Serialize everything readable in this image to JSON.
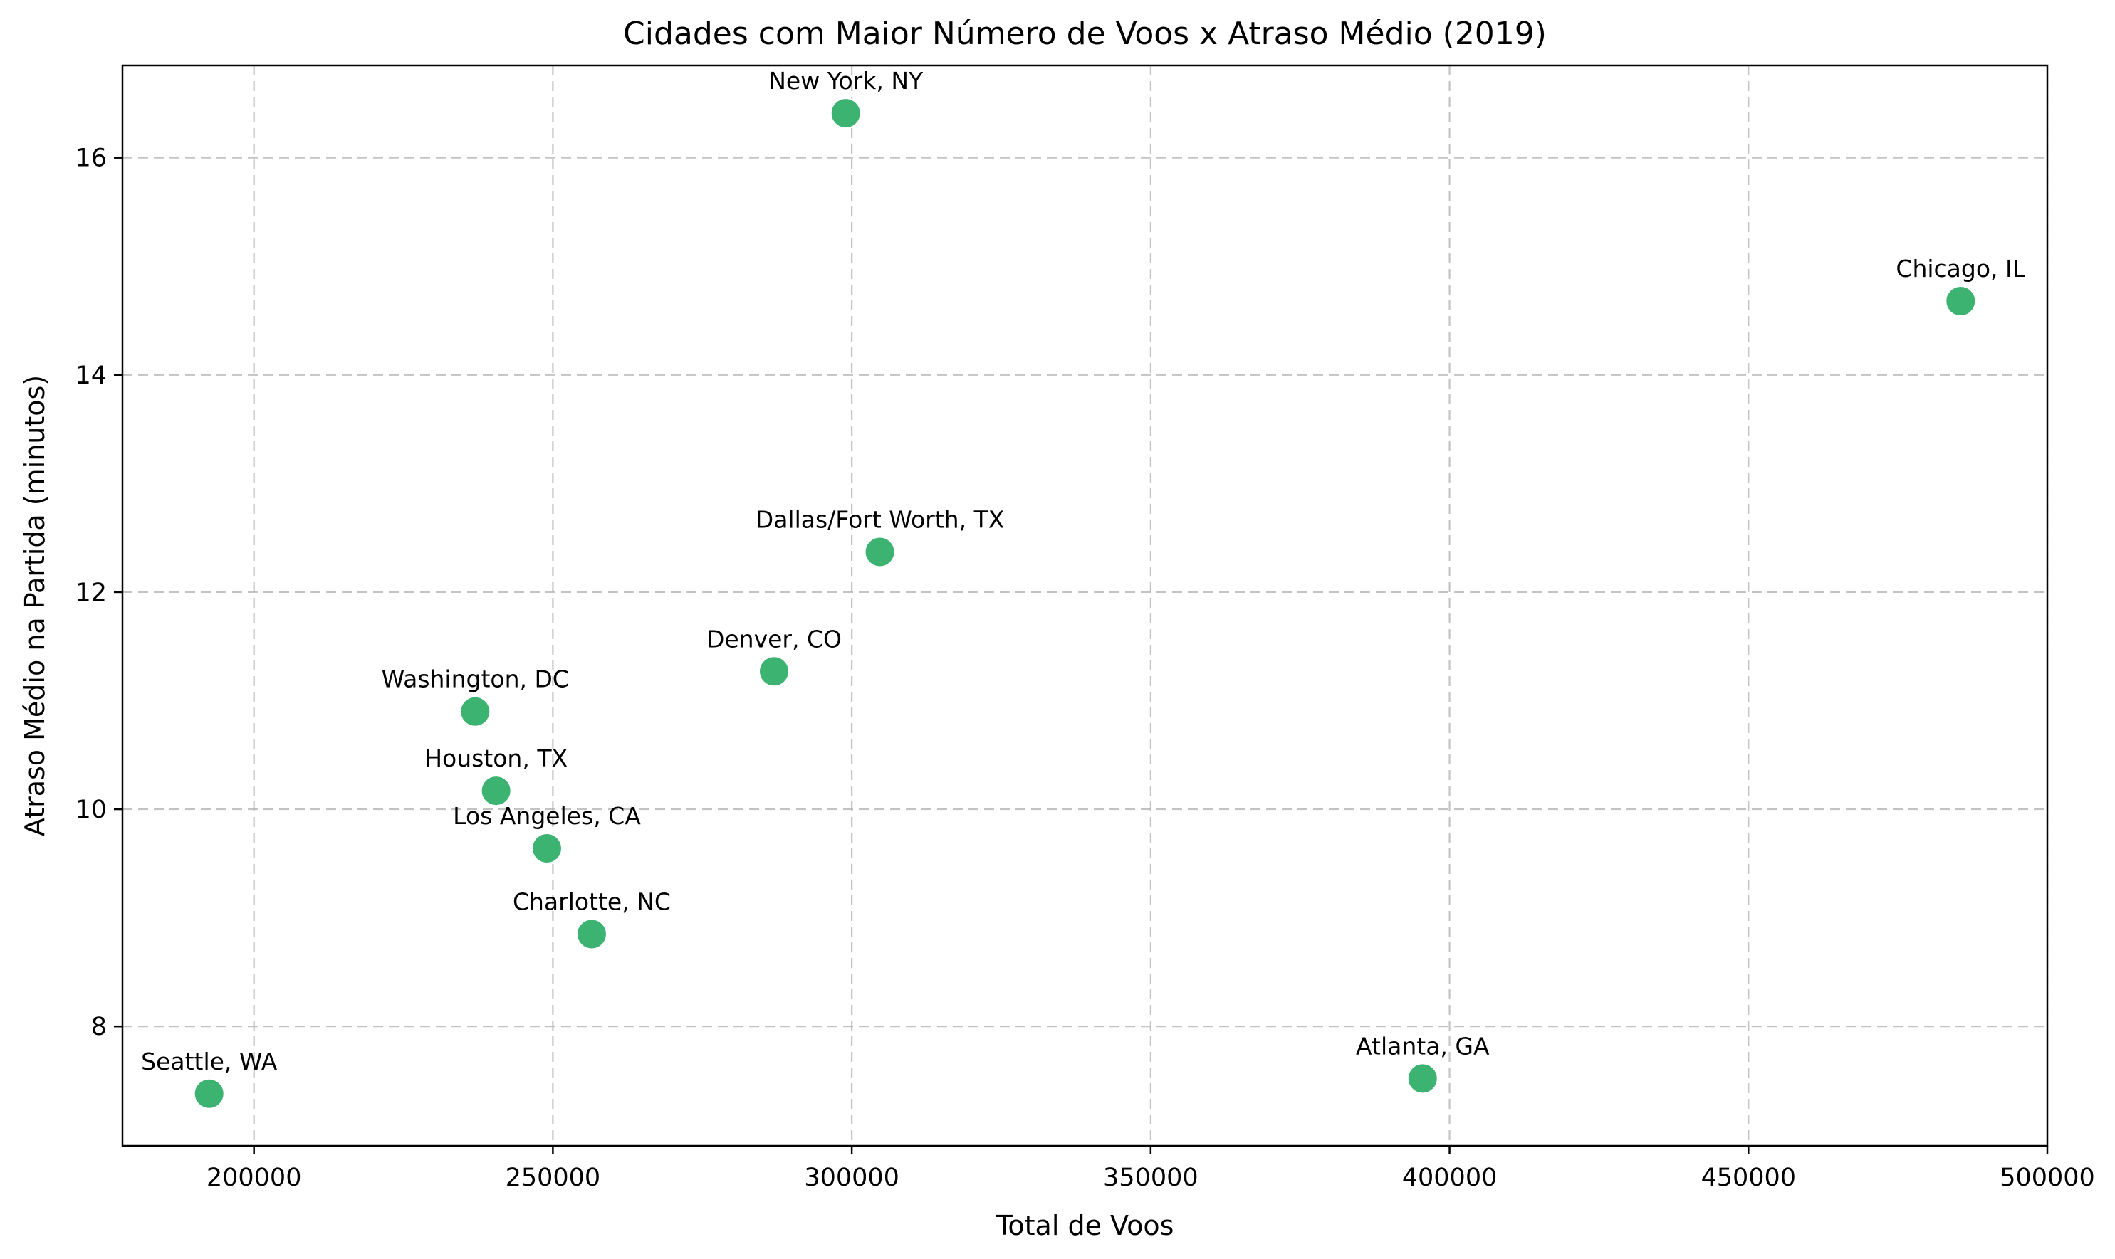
{
  "chart_data": {
    "type": "scatter",
    "title": "Cidades com Maior Número de Voos x Atraso Médio (2019)",
    "xlabel": "Total de Voos",
    "ylabel": "Atraso Médio na Partida (minutos)",
    "xlim": [
      178000,
      500000
    ],
    "ylim": [
      6.9,
      16.85
    ],
    "xticks": [
      200000,
      250000,
      300000,
      350000,
      400000,
      450000,
      500000
    ],
    "yticks": [
      8,
      10,
      12,
      14,
      16
    ],
    "grid": true,
    "marker_color": "#3cb371",
    "points": [
      {
        "label": "New York, NY",
        "x": 299000,
        "y": 16.41
      },
      {
        "label": "Chicago, IL",
        "x": 485500,
        "y": 14.68
      },
      {
        "label": "Dallas/Fort Worth, TX",
        "x": 304700,
        "y": 12.37
      },
      {
        "label": "Denver, CO",
        "x": 287000,
        "y": 11.27
      },
      {
        "label": "Washington, DC",
        "x": 237000,
        "y": 10.9
      },
      {
        "label": "Houston, TX",
        "x": 240500,
        "y": 10.17
      },
      {
        "label": "Los Angeles, CA",
        "x": 249000,
        "y": 9.64
      },
      {
        "label": "Charlotte, NC",
        "x": 256500,
        "y": 8.85
      },
      {
        "label": "Atlanta, GA",
        "x": 395500,
        "y": 7.52
      },
      {
        "label": "Seattle, WA",
        "x": 192500,
        "y": 7.38
      }
    ]
  }
}
